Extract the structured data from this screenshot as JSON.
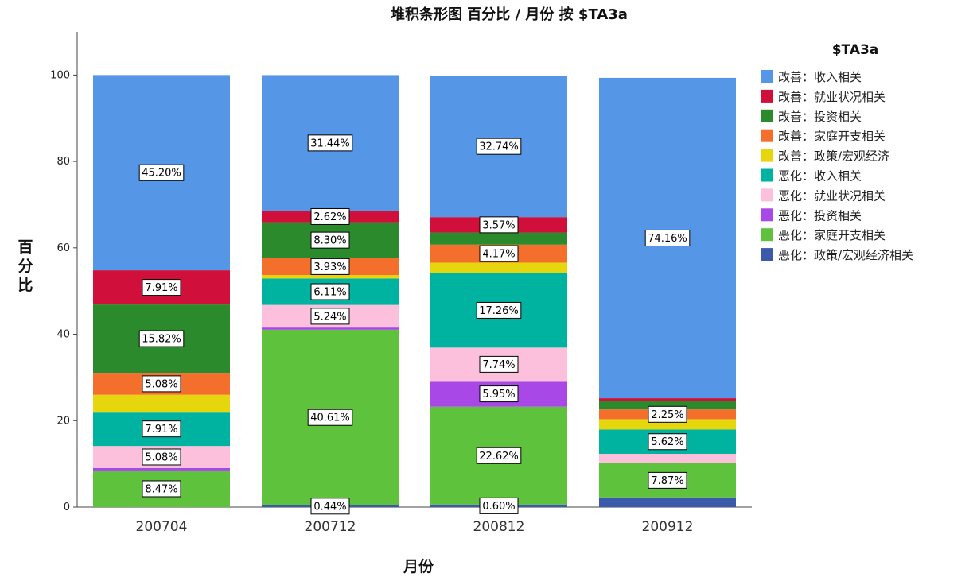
{
  "chart_data": {
    "type": "bar",
    "stacked": true,
    "title": "堆积条形图 百分比 /  月份 按 $TA3a",
    "xlabel": "月份",
    "ylabel": "百分比",
    "ylim": [
      0,
      110
    ],
    "yticks": [
      0,
      20,
      40,
      60,
      80,
      100
    ],
    "grid": false,
    "legend_title": "$TA3a",
    "legend_position": "right",
    "categories": [
      "200704",
      "200712",
      "200812",
      "200912"
    ],
    "series": [
      {
        "name": "改善：收入相关",
        "color": "#5596e6",
        "values": [
          45.2,
          31.44,
          32.74,
          74.16
        ],
        "labels": [
          "45.20%",
          "31.44%",
          "32.74%",
          "74.16%"
        ]
      },
      {
        "name": "改善：就业状况相关",
        "color": "#d0103a",
        "values": [
          7.91,
          2.62,
          3.57,
          0.6
        ],
        "labels": [
          "7.91%",
          "2.62%",
          "3.57%",
          ""
        ]
      },
      {
        "name": "改善：投资相关",
        "color": "#2b8a2b",
        "values": [
          15.82,
          8.3,
          2.8,
          2.0
        ],
        "labels": [
          "15.82%",
          "8.30%",
          "",
          ""
        ]
      },
      {
        "name": "改善：家庭开支相关",
        "color": "#f46e2c",
        "values": [
          5.08,
          3.93,
          4.17,
          2.25
        ],
        "labels": [
          "5.08%",
          "3.93%",
          "4.17%",
          "2.25%"
        ]
      },
      {
        "name": "改善：政策/宏观经济",
        "color": "#e6d60e",
        "values": [
          3.95,
          0.8,
          2.4,
          2.4
        ],
        "labels": [
          "",
          "",
          "",
          ""
        ]
      },
      {
        "name": "恶化：收入相关",
        "color": "#00b3a0",
        "values": [
          7.91,
          6.11,
          17.26,
          5.62
        ],
        "labels": [
          "7.91%",
          "6.11%",
          "17.26%",
          "5.62%"
        ]
      },
      {
        "name": "恶化：就业状况相关",
        "color": "#fcc0dc",
        "values": [
          5.08,
          5.24,
          7.74,
          2.2
        ],
        "labels": [
          "5.08%",
          "5.24%",
          "7.74%",
          ""
        ]
      },
      {
        "name": "恶化：投资相关",
        "color": "#a848e6",
        "values": [
          0.58,
          0.5,
          5.95,
          0.0
        ],
        "labels": [
          "",
          "",
          "5.95%",
          ""
        ]
      },
      {
        "name": "恶化：家庭开支相关",
        "color": "#5ec23c",
        "values": [
          8.47,
          40.61,
          22.62,
          7.87
        ],
        "labels": [
          "8.47%",
          "40.61%",
          "22.62%",
          "7.87%"
        ]
      },
      {
        "name": "恶化：政策/宏观经济相关",
        "color": "#3c5aac",
        "values": [
          0.0,
          0.44,
          0.6,
          2.25
        ],
        "labels": [
          "",
          "0.44%",
          "0.60%",
          ""
        ]
      }
    ]
  }
}
